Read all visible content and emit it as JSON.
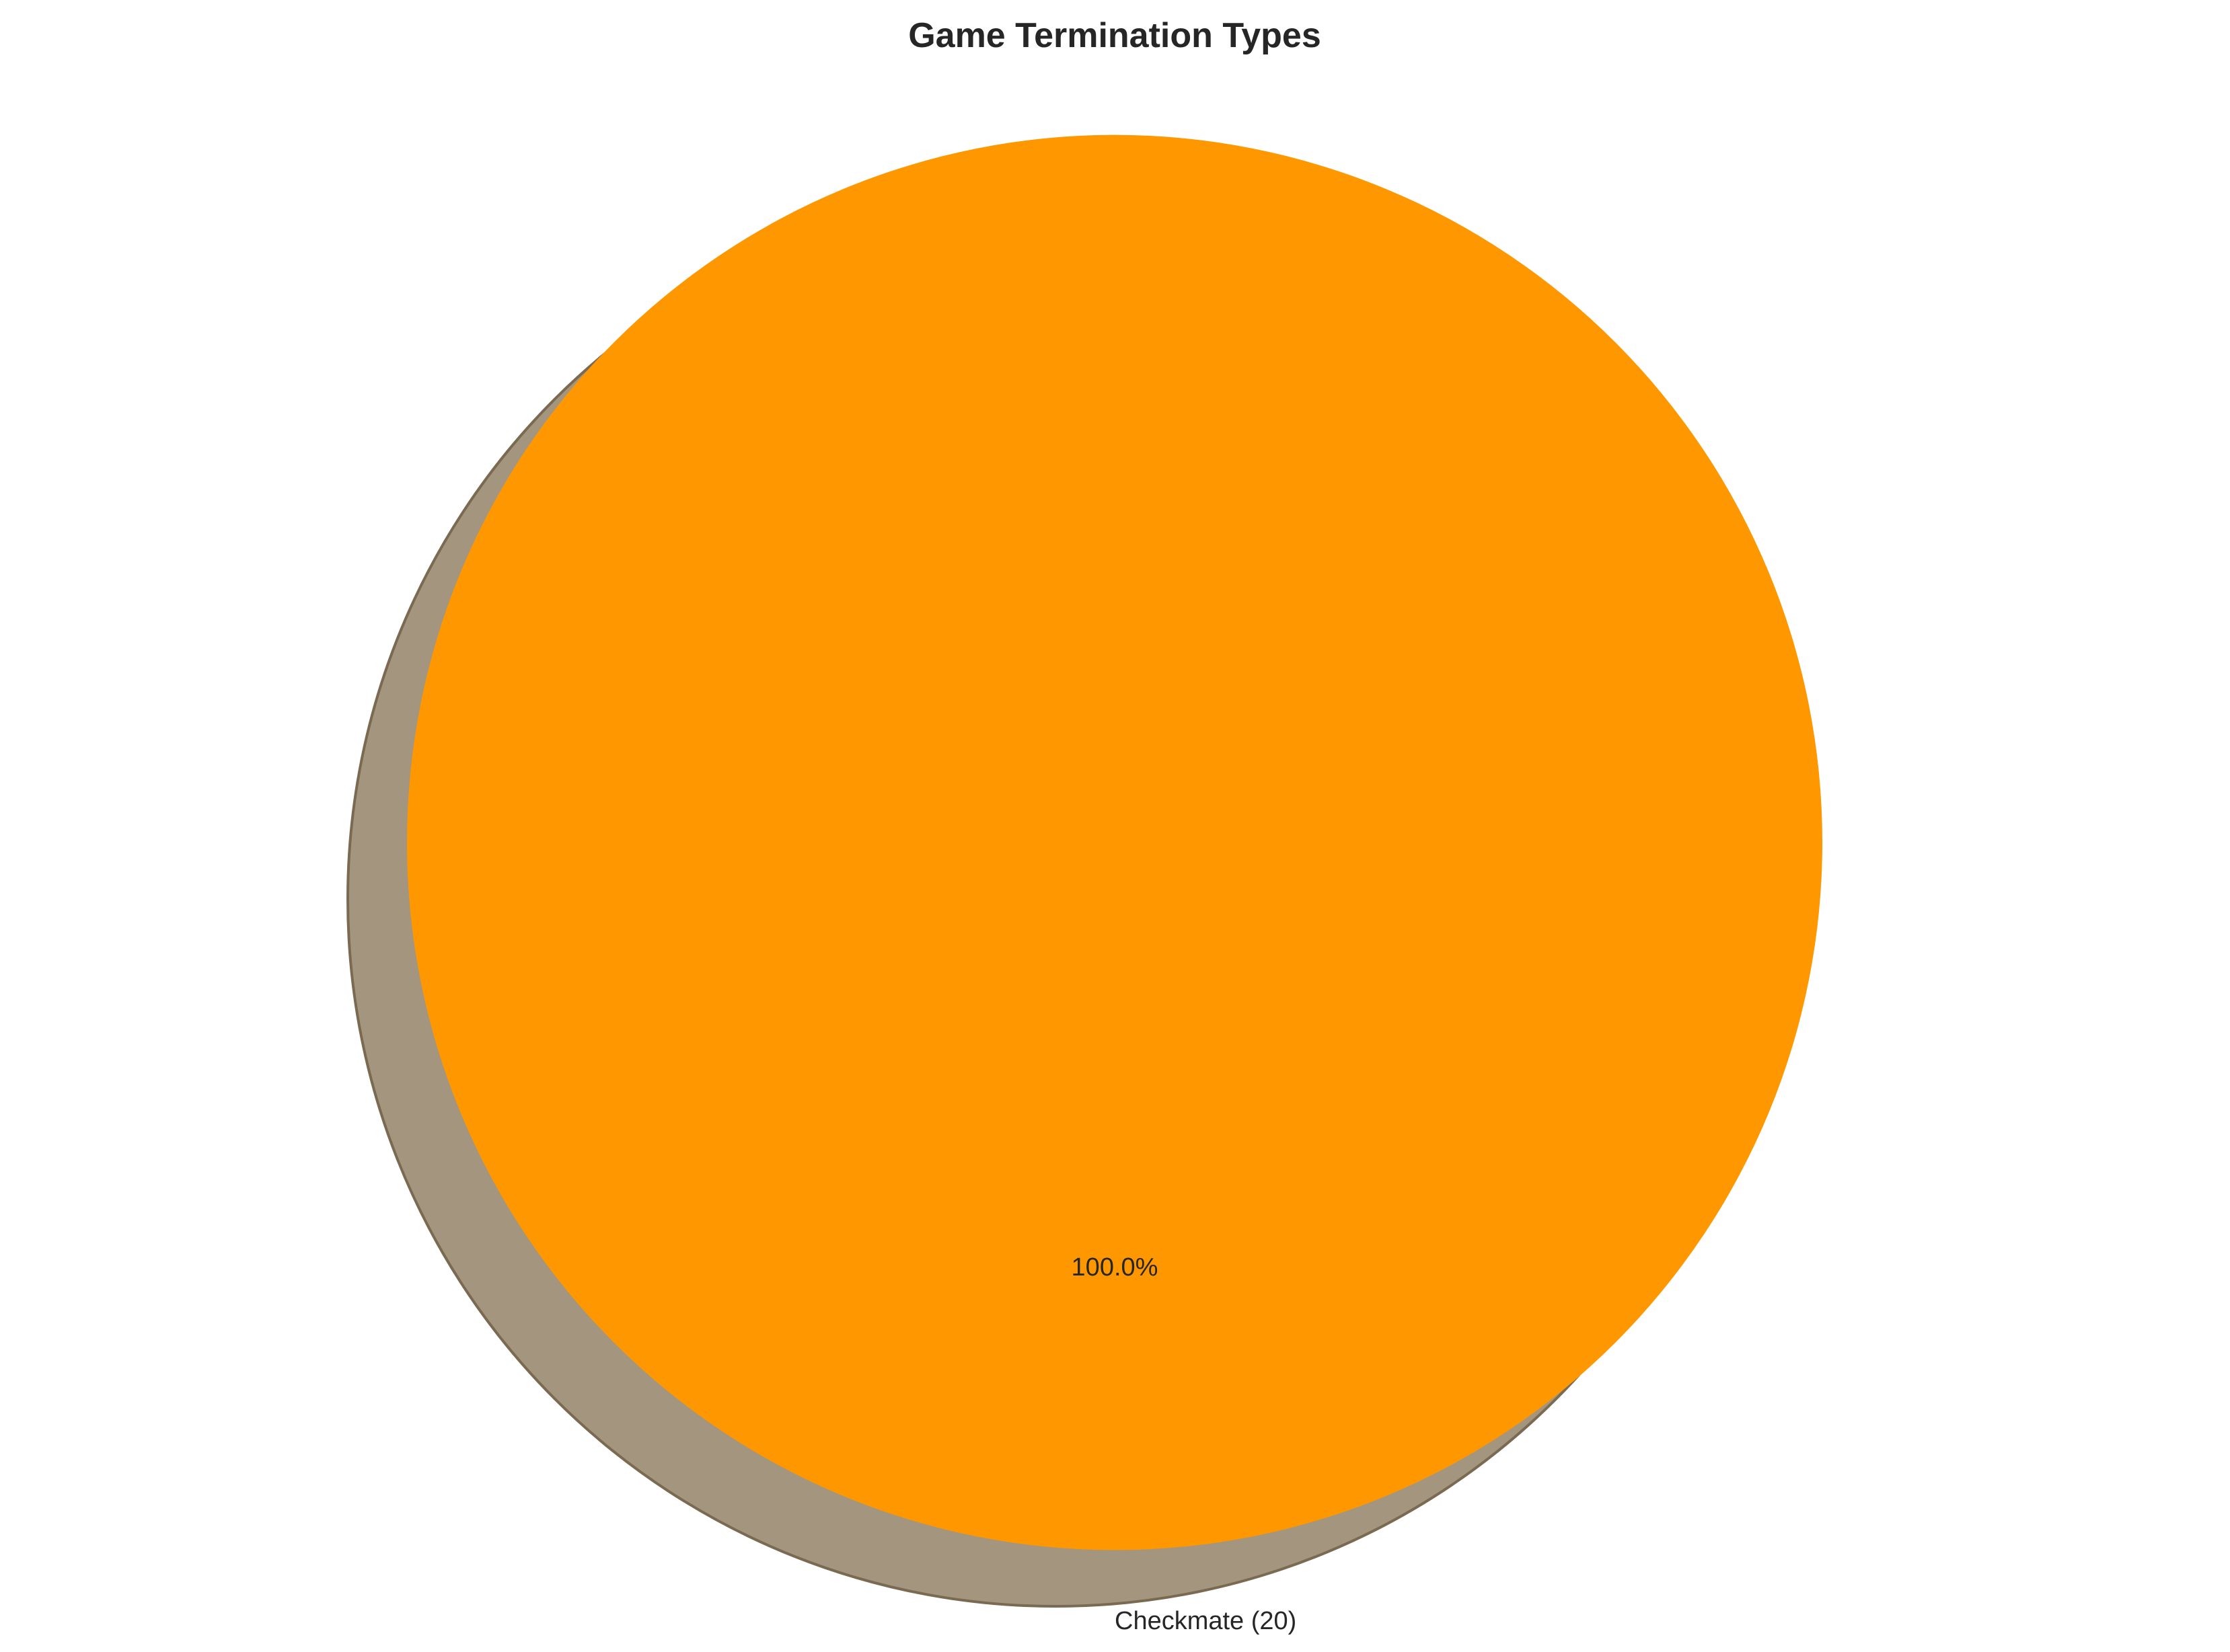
{
  "chart_data": {
    "type": "pie",
    "title": "Game Termination Types",
    "slices": [
      {
        "category": "Checkmate",
        "count": 20,
        "label": "Checkmate (20)",
        "percent": 100.0,
        "percent_label": "100.0%",
        "color": "#ff9800"
      }
    ],
    "shadow": true,
    "shadow_color": "#a4967e",
    "shadow_edge_color": "#7a6a52"
  }
}
